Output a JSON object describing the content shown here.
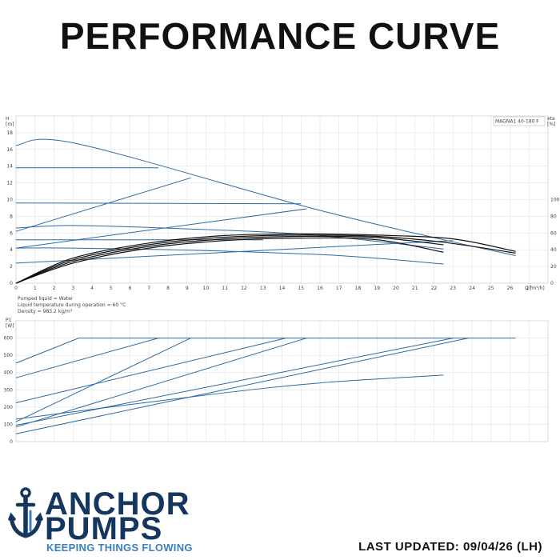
{
  "title": "PERFORMANCE CURVE",
  "notes": {
    "liquid": "Pumped liquid = Water",
    "temperature": "Liquid temperature during operation = 60 °C",
    "density": "Density = 983.2 kg/m³"
  },
  "brand": {
    "line1": "ANCHOR",
    "line2": "PUMPS",
    "tagline": "KEEPING THINGS FLOWING",
    "navy": "#15365e",
    "blue": "#3b7fc0"
  },
  "last_updated": "LAST UPDATED: 09/04/26 (LH)",
  "colors": {
    "curve": "#2f6aa0",
    "efficiency": "#111111",
    "grid": "#e2e2e2"
  },
  "chart_data": [
    {
      "type": "line",
      "model_label": "MAGNA1 40-180 F",
      "ylabel": "H",
      "yunit": "[m]",
      "y2label": "eta",
      "y2unit": "[%]",
      "xlabel": "Q",
      "xunit": "[m³/h]",
      "xlim": [
        0,
        28
      ],
      "ylim": [
        0,
        20
      ],
      "y2lim": [
        0,
        200
      ],
      "x_ticks": [
        0,
        1,
        2,
        3,
        4,
        5,
        6,
        7,
        8,
        9,
        10,
        11,
        12,
        13,
        14,
        15,
        16,
        17,
        18,
        19,
        20,
        21,
        22,
        23,
        24,
        25,
        26,
        27
      ],
      "y_ticks": [
        0,
        2,
        4,
        6,
        8,
        10,
        12,
        14,
        16,
        18
      ],
      "y2_ticks": [
        0,
        20,
        40,
        60,
        80,
        100
      ],
      "grid": true,
      "series": [
        {
          "role": "head",
          "points": [
            [
              0,
              16.5
            ],
            [
              3.2,
              16.7
            ],
            [
              15.5,
              9
            ],
            [
              22.5,
              5.2
            ],
            [
              26.3,
              3.3
            ]
          ]
        },
        {
          "role": "head",
          "points": [
            [
              0,
              13.8
            ],
            [
              7.5,
              13.8
            ]
          ]
        },
        {
          "role": "head",
          "points": [
            [
              0,
              9.6
            ],
            [
              15,
              9.5
            ]
          ]
        },
        {
          "role": "head",
          "points": [
            [
              0,
              6.6
            ],
            [
              3,
              6.9
            ],
            [
              9,
              6.5
            ],
            [
              15.5,
              5.8
            ],
            [
              22.5,
              4.1
            ]
          ]
        },
        {
          "role": "head",
          "points": [
            [
              0,
              5.2
            ],
            [
              13,
              5.2
            ]
          ]
        },
        {
          "role": "head",
          "points": [
            [
              0,
              4.2
            ],
            [
              3,
              4.2
            ],
            [
              10,
              3.9
            ],
            [
              17,
              3.3
            ],
            [
              22.5,
              2.3
            ]
          ]
        },
        {
          "role": "system",
          "points": [
            [
              0,
              6.2
            ],
            [
              9.2,
              12.6
            ]
          ]
        },
        {
          "role": "system",
          "points": [
            [
              0,
              4.2
            ],
            [
              15.3,
              8.9
            ]
          ]
        },
        {
          "role": "system",
          "points": [
            [
              0,
              2.4
            ],
            [
              23,
              5.1
            ]
          ]
        },
        {
          "role": "efficiency",
          "points": [
            [
              0,
              0
            ],
            [
              3,
              30
            ],
            [
              7,
              48
            ],
            [
              11,
              57
            ],
            [
              15,
              59
            ],
            [
              19,
              57.5
            ],
            [
              23,
              53
            ],
            [
              26.3,
              38
            ]
          ]
        },
        {
          "role": "efficiency",
          "points": [
            [
              0,
              0
            ],
            [
              3,
              28
            ],
            [
              7,
              46
            ],
            [
              11,
              55
            ],
            [
              15,
              57.5
            ],
            [
              19,
              56
            ],
            [
              22.5,
              49
            ],
            [
              26.3,
              36
            ]
          ]
        },
        {
          "role": "efficiency",
          "points": [
            [
              0,
              0
            ],
            [
              3,
              26
            ],
            [
              7,
              44
            ],
            [
              11,
              53
            ],
            [
              15,
              56
            ],
            [
              19,
              54.5
            ],
            [
              22.5,
              46
            ]
          ]
        },
        {
          "role": "efficiency",
          "points": [
            [
              0,
              0
            ],
            [
              3,
              24
            ],
            [
              7,
              42
            ],
            [
              11,
              51
            ],
            [
              15,
              54
            ],
            [
              19,
              52
            ],
            [
              22.5,
              37
            ]
          ]
        }
      ]
    },
    {
      "type": "line",
      "ylabel": "P1",
      "yunit": "[W]",
      "xlim": [
        0,
        28
      ],
      "ylim": [
        0,
        700
      ],
      "y_ticks": [
        0,
        100,
        200,
        300,
        400,
        500,
        600
      ],
      "grid": true,
      "series": [
        {
          "role": "power",
          "points": [
            [
              0,
              455
            ],
            [
              3.3,
              600
            ],
            [
              26.3,
              600
            ]
          ]
        },
        {
          "role": "power",
          "points": [
            [
              0,
              370
            ],
            [
              7.5,
              600
            ]
          ]
        },
        {
          "role": "power",
          "points": [
            [
              0,
              225
            ],
            [
              14.2,
              600
            ]
          ]
        },
        {
          "role": "power",
          "points": [
            [
              0,
              115
            ],
            [
              9.2,
              600
            ]
          ]
        },
        {
          "role": "power",
          "points": [
            [
              0,
              85
            ],
            [
              15.3,
              600
            ]
          ]
        },
        {
          "role": "power",
          "points": [
            [
              0,
              130
            ],
            [
              10,
              270
            ],
            [
              16,
              340
            ],
            [
              22.5,
              385
            ]
          ]
        },
        {
          "role": "power",
          "points": [
            [
              0,
              95
            ],
            [
              23,
              600
            ]
          ]
        },
        {
          "role": "power",
          "points": [
            [
              0,
              45
            ],
            [
              23.8,
              600
            ]
          ]
        }
      ]
    }
  ]
}
